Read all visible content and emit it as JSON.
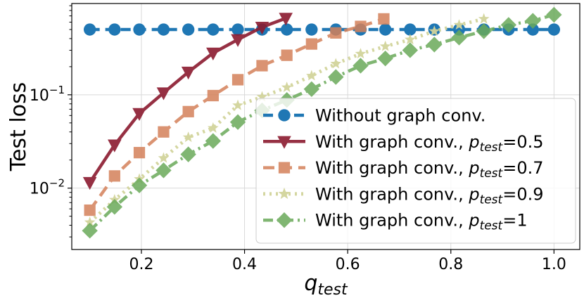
{
  "chart_data": {
    "type": "line",
    "title": "",
    "xlabel": {
      "main": "q",
      "sub": "test"
    },
    "ylabel": "Test loss",
    "yscale": "log",
    "grid": true,
    "legend_position": "bottom-right",
    "xlim": [
      0.065,
      1.05
    ],
    "ylim": [
      0.0022,
      0.95
    ],
    "xticks": [
      {
        "value": 0.2,
        "label": "0.2"
      },
      {
        "value": 0.4,
        "label": "0.4"
      },
      {
        "value": 0.6,
        "label": "0.6"
      },
      {
        "value": 0.8,
        "label": "0.8"
      },
      {
        "value": 1.0,
        "label": "1.0"
      }
    ],
    "yticks": [
      {
        "value": 0.01,
        "base": "10",
        "exp": "−2"
      },
      {
        "value": 0.1,
        "base": "10",
        "exp": "−1"
      }
    ],
    "series": [
      {
        "name": "Without graph conv.",
        "label_parts": {
          "text": "Without graph conv."
        },
        "color": "#1f77b4",
        "dash": "14,8",
        "marker": "circle",
        "opacity": 1,
        "x": [
          0.1,
          0.148,
          0.196,
          0.243,
          0.291,
          0.339,
          0.387,
          0.434,
          0.482,
          0.53,
          0.577,
          0.625,
          0.673,
          0.721,
          0.768,
          0.816,
          0.864,
          0.912,
          0.959,
          1.0
        ],
        "y": [
          0.5,
          0.5,
          0.5,
          0.5,
          0.5,
          0.5,
          0.5,
          0.5,
          0.5,
          0.5,
          0.5,
          0.5,
          0.5,
          0.5,
          0.5,
          0.5,
          0.5,
          0.5,
          0.5,
          0.5
        ]
      },
      {
        "name": "With graph conv., p_test=0.5",
        "label_parts": {
          "text": "With graph conv., p",
          "sub": "test",
          "value": "=0.5"
        },
        "color": "#8b1a2f",
        "dash": "",
        "marker": "triangle-down",
        "opacity": 0.9,
        "x": [
          0.1,
          0.148,
          0.196,
          0.243,
          0.291,
          0.339,
          0.387,
          0.434,
          0.48
        ],
        "y": [
          0.0115,
          0.029,
          0.063,
          0.105,
          0.175,
          0.28,
          0.39,
          0.53,
          0.66
        ]
      },
      {
        "name": "With graph conv., p_test=0.7",
        "label_parts": {
          "text": "With graph conv., p",
          "sub": "test",
          "value": "=0.7"
        },
        "color": "#d4815a",
        "dash": "16,9",
        "marker": "square",
        "opacity": 0.85,
        "x": [
          0.1,
          0.148,
          0.196,
          0.243,
          0.291,
          0.339,
          0.387,
          0.434,
          0.482,
          0.53,
          0.577,
          0.625,
          0.67
        ],
        "y": [
          0.0058,
          0.0135,
          0.024,
          0.04,
          0.066,
          0.098,
          0.145,
          0.205,
          0.265,
          0.35,
          0.46,
          0.54,
          0.65
        ]
      },
      {
        "name": "With graph conv., p_test=0.9",
        "label_parts": {
          "text": "With graph conv., p",
          "sub": "test",
          "value": "=0.9"
        },
        "color": "#d2d49b",
        "dash": "3,6",
        "marker": "star",
        "opacity": 0.95,
        "x": [
          0.1,
          0.148,
          0.196,
          0.243,
          0.291,
          0.339,
          0.387,
          0.434,
          0.482,
          0.53,
          0.577,
          0.625,
          0.673,
          0.721,
          0.768,
          0.816,
          0.864
        ],
        "y": [
          0.0043,
          0.0075,
          0.0125,
          0.021,
          0.035,
          0.044,
          0.077,
          0.095,
          0.12,
          0.16,
          0.215,
          0.275,
          0.33,
          0.39,
          0.48,
          0.56,
          0.65
        ]
      },
      {
        "name": "With graph conv., p_test=1",
        "label_parts": {
          "text": "With graph conv., p",
          "sub": "test",
          "value": "=1"
        },
        "color": "#6aaa5a",
        "dash": "14,6,3,6",
        "marker": "diamond",
        "opacity": 0.85,
        "x": [
          0.1,
          0.148,
          0.196,
          0.243,
          0.291,
          0.339,
          0.387,
          0.434,
          0.482,
          0.53,
          0.577,
          0.625,
          0.673,
          0.721,
          0.768,
          0.816,
          0.864,
          0.912,
          0.959,
          1.0
        ],
        "y": [
          0.0035,
          0.0063,
          0.0107,
          0.0155,
          0.023,
          0.032,
          0.051,
          0.068,
          0.088,
          0.115,
          0.155,
          0.205,
          0.245,
          0.3,
          0.345,
          0.41,
          0.48,
          0.56,
          0.62,
          0.72
        ]
      }
    ]
  }
}
